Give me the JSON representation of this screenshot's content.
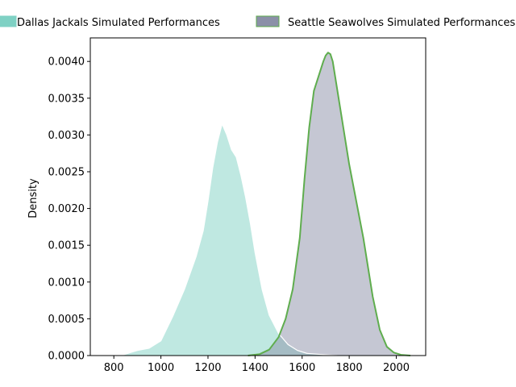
{
  "chart_data": {
    "type": "area",
    "ylabel": "Density",
    "xlabel": "",
    "title": "",
    "xlim": [
      700,
      2125
    ],
    "ylim": [
      0,
      0.00432
    ],
    "x_ticks": [
      800,
      1000,
      1200,
      1400,
      1600,
      1800,
      2000
    ],
    "y_ticks": [
      0.0,
      0.0005,
      0.001,
      0.0015,
      0.002,
      0.0025,
      0.003,
      0.0035,
      0.004
    ],
    "legend_position": "top",
    "grid": false,
    "series": [
      {
        "name": "Dallas Jackals Simulated Performances",
        "fill_color": "#7fd1c4",
        "line_color": "#ffffff",
        "x": [
          830,
          870,
          900,
          950,
          1000,
          1050,
          1100,
          1150,
          1180,
          1200,
          1220,
          1240,
          1260,
          1280,
          1300,
          1320,
          1340,
          1360,
          1380,
          1400,
          1430,
          1460,
          1500,
          1540,
          1580,
          1620,
          1660,
          1700,
          1750
        ],
        "y": [
          0.0,
          4e-05,
          7e-05,
          0.0001,
          0.0002,
          0.00053,
          0.0009,
          0.00135,
          0.0017,
          0.0021,
          0.00255,
          0.0029,
          0.00315,
          0.003,
          0.0028,
          0.0027,
          0.00245,
          0.00215,
          0.0018,
          0.0014,
          0.0009,
          0.00055,
          0.0003,
          0.00015,
          7e-05,
          3e-05,
          2e-05,
          1e-05,
          0.0
        ]
      },
      {
        "name": "Seattle Seawolves Simulated Performances",
        "fill_color": "#8b90a8",
        "line_color": "#5fad4e",
        "x": [
          1370,
          1420,
          1460,
          1500,
          1530,
          1560,
          1590,
          1610,
          1630,
          1650,
          1670,
          1690,
          1700,
          1710,
          1720,
          1730,
          1740,
          1760,
          1780,
          1800,
          1830,
          1860,
          1880,
          1900,
          1930,
          1960,
          1990,
          2020,
          2060
        ],
        "y": [
          0.0,
          2e-05,
          8e-05,
          0.00025,
          0.0005,
          0.0009,
          0.0016,
          0.0024,
          0.0031,
          0.0036,
          0.0038,
          0.004,
          0.00408,
          0.00412,
          0.0041,
          0.004,
          0.0038,
          0.0034,
          0.003,
          0.0026,
          0.0021,
          0.0016,
          0.0012,
          0.0008,
          0.00035,
          0.00012,
          4e-05,
          1e-05,
          0.0
        ]
      }
    ]
  }
}
